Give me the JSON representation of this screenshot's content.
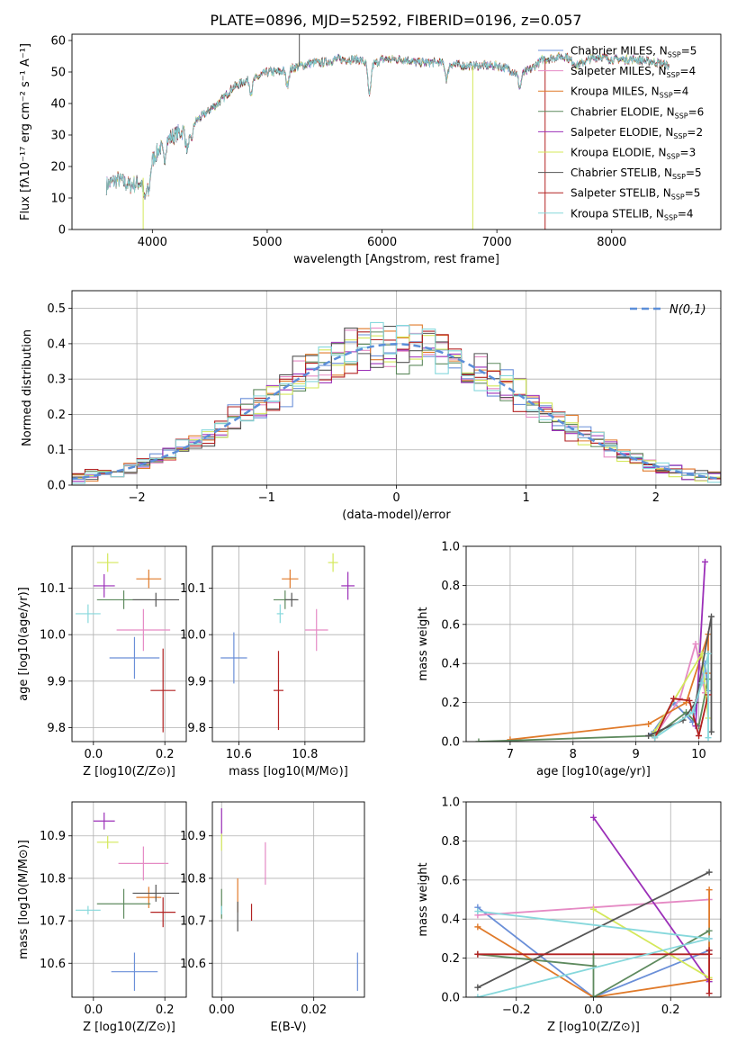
{
  "title": "PLATE=0896, MJD=52592, FIBERID=0196, z=0.057",
  "colors": {
    "Chabrier MILES": "#6a8fd8",
    "Salpeter MILES": "#e58ac4",
    "Kroupa MILES": "#e07a2a",
    "Chabrier ELODIE": "#5e8a5e",
    "Salpeter ELODIE": "#9b2fb8",
    "Kroupa ELODIE": "#d4e85a",
    "Chabrier STELIB": "#555555",
    "Salpeter STELIB": "#b22222",
    "Kroupa STELIB": "#86d8dc"
  },
  "chart_data": [
    {
      "type": "line",
      "title": "PLATE=0896, MJD=52592, FIBERID=0196, z=0.057",
      "xlabel": "wavelength [Angstrom, rest frame]",
      "ylabel": "Flux [fλ10⁻¹⁷ erg cm⁻² s⁻¹ A⁻¹]",
      "xlim": [
        3300,
        8950
      ],
      "ylim": [
        0,
        62
      ],
      "xticks": [
        4000,
        5000,
        6000,
        7000,
        8000
      ],
      "yticks": [
        0,
        10,
        20,
        30,
        40,
        50,
        60
      ],
      "legend_position": "top-right",
      "x_range": [
        3600,
        8500
      ],
      "series": [
        {
          "name": "Chabrier MILES, N_SSP=5"
        },
        {
          "name": "Salpeter MILES, N_SSP=4"
        },
        {
          "name": "Kroupa MILES, N_SSP=4"
        },
        {
          "name": "Chabrier ELODIE, N_SSP=6"
        },
        {
          "name": "Salpeter ELODIE, N_SSP=2"
        },
        {
          "name": "Kroupa ELODIE, N_SSP=3"
        },
        {
          "name": "Chabrier STELIB, N_SSP=5"
        },
        {
          "name": "Salpeter STELIB, N_SSP=5"
        },
        {
          "name": "Kroupa STELIB, N_SSP=4"
        }
      ],
      "continuum_knots": [
        [
          3600,
          14
        ],
        [
          3700,
          16
        ],
        [
          3800,
          14
        ],
        [
          3900,
          15
        ],
        [
          4000,
          22
        ],
        [
          4100,
          28
        ],
        [
          4200,
          30
        ],
        [
          4300,
          32
        ],
        [
          4400,
          35
        ],
        [
          4500,
          38
        ],
        [
          4600,
          41
        ],
        [
          4700,
          45
        ],
        [
          4800,
          47
        ],
        [
          4900,
          48
        ],
        [
          5000,
          50
        ],
        [
          5100,
          50
        ],
        [
          5200,
          51
        ],
        [
          5300,
          52
        ],
        [
          5400,
          53
        ],
        [
          5500,
          53
        ],
        [
          5600,
          54
        ],
        [
          5700,
          54
        ],
        [
          5800,
          54
        ],
        [
          5900,
          52
        ],
        [
          6000,
          54
        ],
        [
          6200,
          54
        ],
        [
          6300,
          53
        ],
        [
          6500,
          53
        ],
        [
          6700,
          52
        ],
        [
          6800,
          52
        ],
        [
          7000,
          52
        ],
        [
          7100,
          51
        ],
        [
          7200,
          49
        ],
        [
          7300,
          51
        ],
        [
          7400,
          54
        ],
        [
          7600,
          55
        ],
        [
          7700,
          52
        ],
        [
          7800,
          54
        ],
        [
          7900,
          55
        ],
        [
          8000,
          54
        ],
        [
          8200,
          54
        ],
        [
          8400,
          53
        ],
        [
          8500,
          52
        ]
      ],
      "absorption_features": [
        [
          3934,
          8
        ],
        [
          3968,
          8
        ],
        [
          4102,
          6
        ],
        [
          4304,
          7
        ],
        [
          4340,
          5
        ],
        [
          4861,
          4
        ],
        [
          5175,
          5
        ],
        [
          5890,
          10
        ],
        [
          6563,
          5
        ],
        [
          7200,
          4
        ]
      ],
      "spikes": [
        [
          5280,
          62,
          "Chabrier STELIB"
        ],
        [
          3920,
          -5,
          "Kroupa ELODIE"
        ],
        [
          6790,
          -10,
          "Kroupa ELODIE"
        ],
        [
          7420,
          -10,
          "Salpeter STELIB"
        ]
      ]
    },
    {
      "type": "line",
      "xlabel": "(data-model)/error",
      "ylabel": "Normed distribution",
      "xlim": [
        -2.5,
        2.5
      ],
      "ylim": [
        0,
        0.55
      ],
      "xticks": [
        -2,
        -1,
        0,
        1,
        2
      ],
      "yticks": [
        0.0,
        0.1,
        0.2,
        0.3,
        0.4,
        0.5
      ],
      "grid": true,
      "legend": "N(0,1)",
      "legend_position": "top-right",
      "bin_width": 0.1,
      "hist_profile": "gaussian histograms per model, peak about 0.4-0.52 near 0"
    },
    {
      "type": "scatter",
      "xlabel": "Z [log10(Z/Z⊙)]",
      "ylabel": "age  [log10(age/yr)]",
      "xlim": [
        -0.06,
        0.26
      ],
      "ylim": [
        9.77,
        10.19
      ],
      "xticks": [
        0.0,
        0.2
      ],
      "yticks": [
        9.8,
        9.9,
        10.0,
        10.1
      ],
      "points": [
        {
          "model": "Chabrier MILES",
          "x": 0.115,
          "xerr": 0.07,
          "y": 9.95,
          "yerr": 0.045
        },
        {
          "model": "Salpeter MILES",
          "x": 0.14,
          "xerr": 0.075,
          "y": 10.01,
          "yerr": 0.045
        },
        {
          "model": "Kroupa MILES",
          "x": 0.155,
          "xerr": 0.035,
          "y": 10.12,
          "yerr": 0.02
        },
        {
          "model": "Chabrier ELODIE",
          "x": 0.085,
          "xerr": 0.075,
          "y": 10.075,
          "yerr": 0.02
        },
        {
          "model": "Salpeter ELODIE",
          "x": 0.03,
          "xerr": 0.03,
          "y": 10.105,
          "yerr": 0.025
        },
        {
          "model": "Kroupa ELODIE",
          "x": 0.04,
          "xerr": 0.03,
          "y": 10.155,
          "yerr": 0.02
        },
        {
          "model": "Chabrier STELIB",
          "x": 0.175,
          "xerr": 0.065,
          "y": 10.075,
          "yerr": 0.015
        },
        {
          "model": "Salpeter STELIB",
          "x": 0.195,
          "xerr": 0.035,
          "y": 9.88,
          "yerr": 0.09
        },
        {
          "model": "Kroupa STELIB",
          "x": -0.015,
          "xerr": 0.035,
          "y": 10.045,
          "yerr": 0.02
        }
      ]
    },
    {
      "type": "scatter",
      "xlabel": "mass [log10(M/M⊙)]",
      "xlim": [
        10.52,
        10.98
      ],
      "ylim": [
        9.77,
        10.19
      ],
      "xticks": [
        10.6,
        10.8
      ],
      "yticks": [
        9.8,
        9.9,
        10.0,
        10.1
      ],
      "points": [
        {
          "model": "Chabrier MILES",
          "x": 10.585,
          "xerr": 0.04,
          "y": 9.95,
          "yerr": 0.055
        },
        {
          "model": "Salpeter MILES",
          "x": 10.835,
          "xerr": 0.035,
          "y": 10.01,
          "yerr": 0.045
        },
        {
          "model": "Kroupa MILES",
          "x": 10.755,
          "xerr": 0.025,
          "y": 10.12,
          "yerr": 0.02
        },
        {
          "model": "Chabrier ELODIE",
          "x": 10.74,
          "xerr": 0.035,
          "y": 10.075,
          "yerr": 0.02
        },
        {
          "model": "Salpeter ELODIE",
          "x": 10.93,
          "xerr": 0.02,
          "y": 10.105,
          "yerr": 0.03
        },
        {
          "model": "Kroupa ELODIE",
          "x": 10.885,
          "xerr": 0.015,
          "y": 10.155,
          "yerr": 0.02
        },
        {
          "model": "Chabrier STELIB",
          "x": 10.76,
          "xerr": 0.02,
          "y": 10.075,
          "yerr": 0.015
        },
        {
          "model": "Salpeter STELIB",
          "x": 10.72,
          "xerr": 0.015,
          "y": 9.88,
          "yerr": 0.085
        },
        {
          "model": "Kroupa STELIB",
          "x": 10.725,
          "xerr": 0.01,
          "y": 10.045,
          "yerr": 0.02
        }
      ]
    },
    {
      "type": "line",
      "xlabel": "age  [log10(age/yr)]",
      "ylabel": "mass weight",
      "xlim": [
        6.3,
        10.35
      ],
      "ylim": [
        0,
        1.0
      ],
      "xticks": [
        7,
        8,
        9,
        10
      ],
      "yticks": [
        0.0,
        0.2,
        0.4,
        0.6,
        0.8,
        1.0
      ],
      "grid": true,
      "series": [
        {
          "model": "Chabrier MILES",
          "points": [
            [
              9.25,
              0.04
            ],
            [
              9.6,
              0.2
            ],
            [
              9.9,
              0.1
            ],
            [
              10.1,
              0.4
            ],
            [
              10.15,
              0.26
            ]
          ]
        },
        {
          "model": "Salpeter MILES",
          "points": [
            [
              9.3,
              0.03
            ],
            [
              9.7,
              0.22
            ],
            [
              9.95,
              0.5
            ],
            [
              10.1,
              0.25
            ]
          ]
        },
        {
          "model": "Kroupa MILES",
          "points": [
            [
              7.0,
              0.01
            ],
            [
              9.2,
              0.09
            ],
            [
              9.8,
              0.2
            ],
            [
              10.15,
              0.55
            ],
            [
              10.15,
              0.35
            ]
          ]
        },
        {
          "model": "Chabrier ELODIE",
          "points": [
            [
              6.5,
              0.0
            ],
            [
              9.3,
              0.03
            ],
            [
              9.8,
              0.15
            ],
            [
              10.0,
              0.08
            ],
            [
              10.15,
              0.32
            ]
          ]
        },
        {
          "model": "Salpeter ELODIE",
          "points": [
            [
              9.95,
              0.08
            ],
            [
              10.1,
              0.92
            ]
          ]
        },
        {
          "model": "Kroupa ELODIE",
          "points": [
            [
              9.3,
              0.05
            ],
            [
              10.05,
              0.45
            ],
            [
              10.15,
              0.12
            ]
          ]
        },
        {
          "model": "Chabrier STELIB",
          "points": [
            [
              9.2,
              0.03
            ],
            [
              9.75,
              0.11
            ],
            [
              9.95,
              0.2
            ],
            [
              10.2,
              0.64
            ],
            [
              10.2,
              0.05
            ]
          ]
        },
        {
          "model": "Salpeter STELIB",
          "points": [
            [
              9.3,
              0.02
            ],
            [
              9.6,
              0.22
            ],
            [
              9.85,
              0.21
            ],
            [
              10.0,
              0.03
            ],
            [
              10.15,
              0.24
            ]
          ]
        },
        {
          "model": "Kroupa STELIB",
          "points": [
            [
              9.3,
              0.02
            ],
            [
              9.9,
              0.15
            ],
            [
              10.05,
              0.3
            ],
            [
              10.15,
              0.45
            ],
            [
              10.15,
              0.02
            ]
          ]
        }
      ]
    },
    {
      "type": "scatter",
      "xlabel": "Z [log10(Z/Z⊙)]",
      "ylabel": "mass [log10(M/M⊙)]",
      "xlim": [
        -0.06,
        0.26
      ],
      "ylim": [
        10.52,
        10.98
      ],
      "xticks": [
        0.0,
        0.2
      ],
      "yticks": [
        10.6,
        10.7,
        10.8,
        10.9
      ],
      "points": [
        {
          "model": "Chabrier MILES",
          "x": 0.115,
          "xerr": 0.065,
          "y": 10.58,
          "yerr": 0.045
        },
        {
          "model": "Salpeter MILES",
          "x": 0.14,
          "xerr": 0.07,
          "y": 10.835,
          "yerr": 0.04
        },
        {
          "model": "Kroupa MILES",
          "x": 0.155,
          "xerr": 0.035,
          "y": 10.755,
          "yerr": 0.025
        },
        {
          "model": "Chabrier ELODIE",
          "x": 0.085,
          "xerr": 0.075,
          "y": 10.74,
          "yerr": 0.035
        },
        {
          "model": "Salpeter ELODIE",
          "x": 0.03,
          "xerr": 0.03,
          "y": 10.935,
          "yerr": 0.02
        },
        {
          "model": "Kroupa ELODIE",
          "x": 0.04,
          "xerr": 0.03,
          "y": 10.885,
          "yerr": 0.015
        },
        {
          "model": "Chabrier STELIB",
          "x": 0.175,
          "xerr": 0.065,
          "y": 10.765,
          "yerr": 0.02
        },
        {
          "model": "Salpeter STELIB",
          "x": 0.195,
          "xerr": 0.035,
          "y": 10.72,
          "yerr": 0.035
        },
        {
          "model": "Kroupa STELIB",
          "x": -0.015,
          "xerr": 0.035,
          "y": 10.725,
          "yerr": 0.01
        }
      ]
    },
    {
      "type": "scatter",
      "xlabel": "E(B-V)",
      "xlim": [
        -0.002,
        0.031
      ],
      "ylim": [
        10.52,
        10.98
      ],
      "xticks": [
        0.0,
        0.02
      ],
      "yticks": [
        10.6,
        10.7,
        10.8,
        10.9
      ],
      "points": [
        {
          "model": "Chabrier MILES",
          "x": 0.0295,
          "y": 10.58,
          "yerr": 0.045
        },
        {
          "model": "Salpeter MILES",
          "x": 0.0095,
          "y": 10.835,
          "yerr": 0.05
        },
        {
          "model": "Kroupa MILES",
          "x": 0.0035,
          "y": 10.76,
          "yerr": 0.04
        },
        {
          "model": "Chabrier ELODIE",
          "x": 0.0,
          "y": 10.74,
          "yerr": 0.035
        },
        {
          "model": "Salpeter ELODIE",
          "x": 0.0,
          "y": 10.935,
          "yerr": 0.03
        },
        {
          "model": "Kroupa ELODIE",
          "x": 0.0,
          "y": 10.885,
          "yerr": 0.02
        },
        {
          "model": "Chabrier STELIB",
          "x": 0.0035,
          "y": 10.71,
          "yerr": 0.035
        },
        {
          "model": "Salpeter STELIB",
          "x": 0.0065,
          "y": 10.72,
          "yerr": 0.02
        },
        {
          "model": "Kroupa STELIB",
          "x": 0.0,
          "y": 10.725,
          "yerr": 0.01
        }
      ]
    },
    {
      "type": "line",
      "xlabel": "Z [log10(Z/Z⊙)]",
      "ylabel": "mass weight",
      "xlim": [
        -0.33,
        0.33
      ],
      "ylim": [
        0,
        1.0
      ],
      "xticks": [
        -0.2,
        0.0,
        0.2
      ],
      "yticks": [
        0.0,
        0.2,
        0.4,
        0.6,
        0.8,
        1.0
      ],
      "grid": true,
      "series": [
        {
          "model": "Chabrier MILES",
          "points": [
            [
              -0.3,
              0.46
            ],
            [
              0.0,
              0.0
            ],
            [
              0.3,
              0.24
            ],
            [
              0.3,
              0.3
            ]
          ]
        },
        {
          "model": "Salpeter MILES",
          "points": [
            [
              -0.3,
              0.42
            ],
            [
              0.0,
              0.46
            ],
            [
              0.3,
              0.5
            ]
          ]
        },
        {
          "model": "Kroupa MILES",
          "points": [
            [
              -0.3,
              0.36
            ],
            [
              0.0,
              0.0
            ],
            [
              0.3,
              0.09
            ],
            [
              0.3,
              0.55
            ]
          ]
        },
        {
          "model": "Chabrier ELODIE",
          "points": [
            [
              -0.3,
              0.22
            ],
            [
              0.0,
              0.16
            ],
            [
              0.0,
              0.22
            ],
            [
              0.0,
              0.0
            ],
            [
              0.3,
              0.34
            ]
          ]
        },
        {
          "model": "Salpeter ELODIE",
          "points": [
            [
              0.0,
              0.92
            ],
            [
              0.3,
              0.08
            ]
          ]
        },
        {
          "model": "Kroupa ELODIE",
          "points": [
            [
              0.0,
              0.45
            ],
            [
              0.3,
              0.1
            ]
          ]
        },
        {
          "model": "Chabrier STELIB",
          "points": [
            [
              -0.3,
              0.05
            ],
            [
              0.3,
              0.64
            ]
          ]
        },
        {
          "model": "Salpeter STELIB",
          "points": [
            [
              -0.3,
              0.22
            ],
            [
              0.3,
              0.22
            ],
            [
              0.3,
              0.02
            ],
            [
              0.3,
              0.24
            ]
          ]
        },
        {
          "model": "Kroupa STELIB",
          "points": [
            [
              -0.3,
              0.0
            ],
            [
              0.3,
              0.3
            ],
            [
              -0.3,
              0.44
            ]
          ]
        }
      ]
    }
  ]
}
